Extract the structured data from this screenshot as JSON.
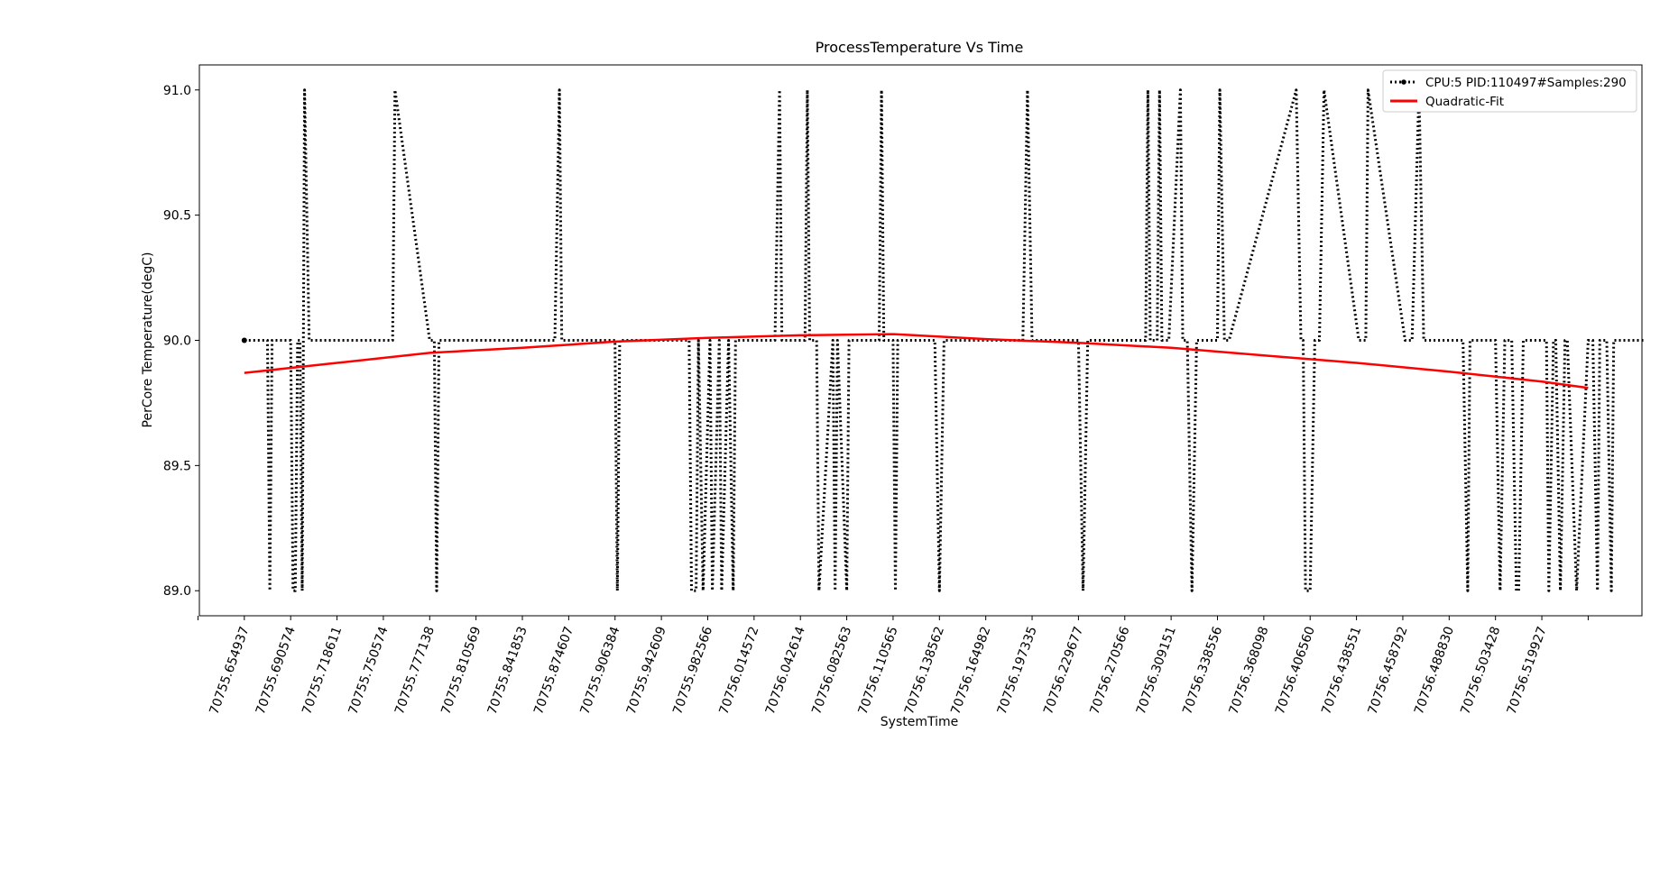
{
  "chart_data": {
    "type": "line",
    "title": "ProcessTemperature Vs Time",
    "xlabel": "SystemTime",
    "ylabel": "PerCore Temperature(degC)",
    "ylim": [
      88.9,
      91.1
    ],
    "yticks": [
      89.0,
      89.5,
      90.0,
      90.5,
      91.0
    ],
    "ytick_labels": [
      "89.0",
      "89.5",
      "90.0",
      "90.5",
      "91.0"
    ],
    "xlim": [
      -0.97,
      30.16
    ],
    "xtick_labels": [
      "70755.654937",
      "70755.690574",
      "70755.718611",
      "70755.750574",
      "70755.777138",
      "70755.810569",
      "70755.841853",
      "70755.874607",
      "70755.906384",
      "70755.942609",
      "70755.982566",
      "70756.014572",
      "70756.042614",
      "70756.082563",
      "70756.110565",
      "70756.138562",
      "70756.164982",
      "70756.197335",
      "70756.229677",
      "70756.270566",
      "70756.309151",
      "70756.338556",
      "70756.368098",
      "70756.406560",
      "70756.438551",
      "70756.458792",
      "70756.488830",
      "70756.503428",
      "70756.519927"
    ],
    "grid": false,
    "legend_position": "top-right",
    "series": [
      {
        "name": "CPU:5 PID:110497#Samples:290",
        "style": "dotted",
        "color": "#000000",
        "x": [
          0,
          0.5,
          0.55,
          0.6,
          1,
          1.05,
          1.1,
          1.15,
          1.2,
          1.25,
          1.3,
          1.4,
          1.5,
          1.55,
          1.6,
          1.65,
          3,
          3.2,
          3.25,
          4,
          4.1,
          4.15,
          4.2,
          5.5,
          6.7,
          6.8,
          6.85,
          6.9,
          6.95,
          8,
          8.05,
          8.1,
          8.2,
          9,
          9.6,
          9.65,
          9.75,
          9.8,
          9.9,
          10.05,
          10.1,
          10.25,
          10.3,
          10.45,
          10.55,
          10.6,
          10.8,
          11.45,
          11.55,
          11.6,
          11.7,
          12.1,
          12.15,
          12.2,
          12.35,
          12.4,
          12.7,
          12.75,
          12.8,
          13.0,
          13.05,
          13.1,
          13.3,
          13.4,
          13.7,
          13.75,
          13.8,
          14.0,
          14.05,
          14.1,
          14.3,
          14.9,
          15.0,
          15.1,
          16.8,
          16.9,
          17.0,
          17.1,
          18.0,
          18.1,
          18.2,
          18.3,
          19.35,
          19.45,
          19.5,
          19.55,
          19.7,
          19.75,
          19.8,
          19.95,
          20.2,
          20.25,
          20.35,
          20.45,
          20.55,
          21.0,
          21.05,
          21.15,
          21.25,
          22.7,
          22.8,
          22.85,
          22.9,
          23.0,
          23.1,
          23.2,
          23.3,
          24.05,
          24.15,
          24.2,
          24.25,
          25.05,
          25.1,
          25.15,
          25.2,
          25.35,
          25.45,
          25.55,
          25.65,
          26.3,
          26.4,
          26.45,
          26.5,
          27.0,
          27.1,
          27.2,
          27.25,
          27.35,
          27.45,
          27.5,
          27.6,
          28.05,
          28.1,
          28.15,
          28.25,
          28.3,
          28.4,
          28.5,
          28.55,
          28.75,
          29.0,
          29.1,
          29.2,
          29.25,
          29.35,
          29.4,
          29.5,
          29.55,
          29.6,
          29.7,
          29.8,
          30.0,
          30.2
        ],
        "y": [
          90,
          90,
          89,
          90,
          90,
          89,
          89,
          90,
          90,
          89,
          91,
          90,
          90,
          90,
          90,
          90,
          90,
          90,
          91,
          90,
          90,
          89,
          90,
          90,
          90,
          91,
          90,
          90,
          90,
          90,
          89,
          90,
          90,
          90,
          90,
          89,
          89,
          90,
          89,
          90,
          89,
          90,
          89,
          90,
          89,
          90,
          90,
          90,
          91,
          90,
          90,
          90,
          91,
          90,
          90,
          89,
          90,
          89,
          90,
          89,
          90,
          90,
          90,
          90,
          90,
          91,
          90,
          90,
          89,
          90,
          90,
          90,
          89,
          90,
          90,
          91,
          90,
          90,
          90,
          89,
          90,
          90,
          90,
          90,
          91,
          90,
          90,
          91,
          90,
          90,
          91,
          90,
          90,
          89,
          90,
          90,
          91,
          90,
          90,
          91,
          90,
          90,
          89,
          89,
          90,
          90,
          91,
          90,
          90,
          90,
          91,
          90,
          90,
          90,
          90,
          91,
          90,
          90,
          90,
          90,
          89,
          90,
          90,
          90,
          89,
          90,
          90,
          90,
          89,
          89,
          90,
          90,
          90,
          89,
          90,
          90,
          89,
          90,
          90,
          89,
          90,
          90,
          89,
          90,
          90,
          90,
          89,
          90,
          90,
          90,
          90,
          90,
          90
        ]
      },
      {
        "name": "Quadratic-Fit",
        "style": "solid",
        "color": "#ff0000",
        "x": [
          0,
          2,
          4,
          6,
          8,
          10,
          12,
          14,
          16,
          18,
          20,
          22,
          24,
          26,
          28,
          29
        ],
        "y": [
          89.87,
          89.91,
          89.95,
          89.97,
          89.995,
          90.01,
          90.02,
          90.025,
          90.005,
          89.99,
          89.97,
          89.94,
          89.91,
          89.875,
          89.835,
          89.81
        ]
      }
    ]
  }
}
